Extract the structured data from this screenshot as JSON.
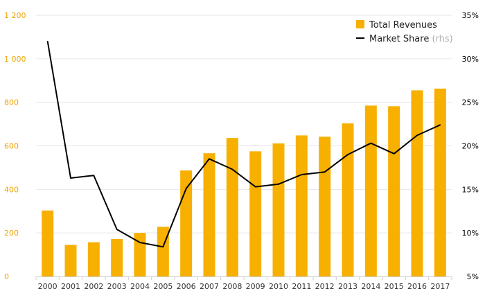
{
  "chart_data": {
    "type": "bar",
    "categories": [
      "2000",
      "2001",
      "2002",
      "2003",
      "2004",
      "2005",
      "2006",
      "2007",
      "2008",
      "2009",
      "2010",
      "2011",
      "2012",
      "2013",
      "2014",
      "2015",
      "2016",
      "2017"
    ],
    "series": [
      {
        "name": "Total Revenues",
        "type": "bar",
        "axis": "left",
        "values": [
          303,
          145,
          157,
          172,
          200,
          228,
          487,
          566,
          636,
          575,
          611,
          648,
          642,
          703,
          785,
          782,
          855,
          863
        ]
      },
      {
        "name": "Market Share",
        "name_note": "(rhs)",
        "type": "line",
        "axis": "right",
        "values": [
          32.0,
          16.3,
          16.6,
          10.4,
          8.9,
          8.4,
          15.1,
          18.5,
          17.3,
          15.3,
          15.6,
          16.7,
          17.0,
          19.0,
          20.3,
          19.1,
          21.2,
          22.4
        ]
      }
    ],
    "yleft": {
      "lim": [
        0,
        1200
      ],
      "ticks": [
        0,
        200,
        400,
        600,
        800,
        1000,
        1200
      ],
      "tick_labels": [
        "0",
        "200",
        "400",
        "600",
        "800",
        "1 000",
        "1 200"
      ]
    },
    "yright": {
      "lim": [
        5,
        35
      ],
      "ticks": [
        5,
        10,
        15,
        20,
        25,
        30,
        35
      ],
      "tick_labels": [
        "5%",
        "10%",
        "15%",
        "20%",
        "25%",
        "30%",
        "35%"
      ]
    },
    "grid": true,
    "legend_position": "top-right",
    "colors": {
      "bar": "#f7b000",
      "line": "#000000",
      "left_ticks": "#f0a500",
      "grid": "#e6e6e6"
    }
  }
}
